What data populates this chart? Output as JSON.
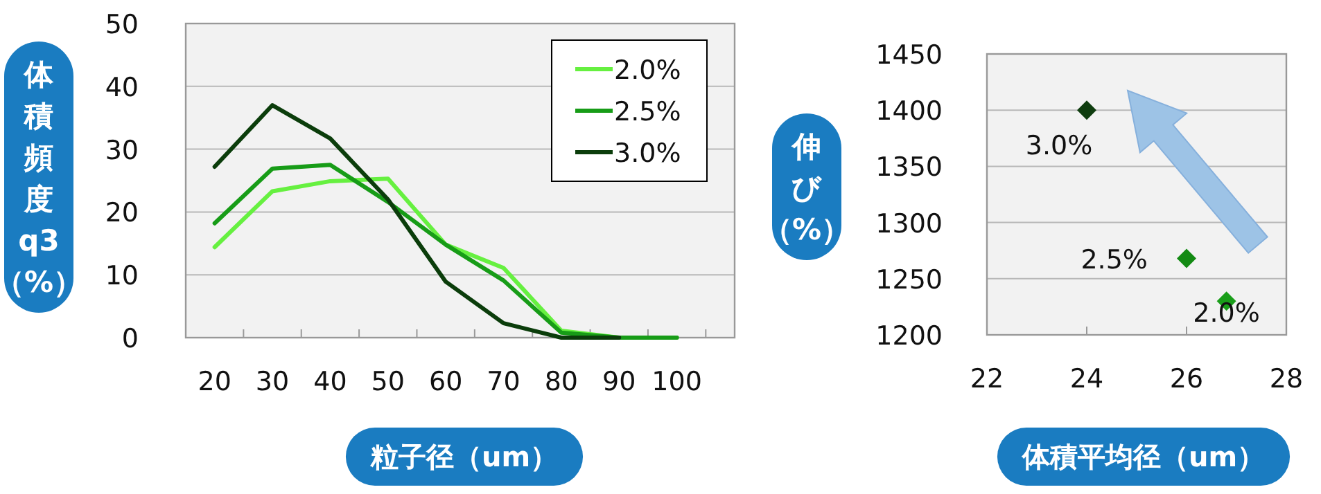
{
  "chart_data": [
    {
      "type": "line",
      "ylabel": "体積頻度q3（%）",
      "xlabel": "粒子径（um）",
      "categories": [
        "20",
        "30",
        "40",
        "50",
        "60",
        "70",
        "80",
        "90",
        "100"
      ],
      "series": [
        {
          "name": "2.0%",
          "color": "#66f040",
          "values": [
            14.4,
            23.3,
            24.9,
            25.3,
            14.8,
            11.1,
            1.1,
            0,
            0
          ]
        },
        {
          "name": "2.5%",
          "color": "#179c17",
          "values": [
            18.2,
            26.9,
            27.5,
            21.6,
            14.8,
            9.1,
            0.8,
            0,
            0
          ]
        },
        {
          "name": "3.0%",
          "color": "#0b3d0b",
          "values": [
            27.2,
            37.0,
            31.7,
            22.0,
            8.9,
            2.3,
            0,
            0,
            null
          ]
        }
      ],
      "ylim": [
        0,
        50
      ],
      "yticks": [
        0,
        10,
        20,
        30,
        40,
        50
      ],
      "grid": "y",
      "legend": "top right"
    },
    {
      "type": "scatter",
      "ylabel": "伸び（%）",
      "xlabel": "体積平均径（um）",
      "x": [
        24,
        26,
        26.8
      ],
      "values": [
        1400,
        1268,
        1230
      ],
      "colors": [
        "#0f3d0f",
        "#138a13",
        "#1a9e1a"
      ],
      "marker": "diamond",
      "xlim": [
        22,
        28
      ],
      "xticks": [
        22,
        24,
        26,
        28
      ],
      "ylim": [
        1200,
        1450
      ],
      "yticks": [
        1200,
        1250,
        1300,
        1350,
        1400,
        1450
      ],
      "grid": "y",
      "annotations": [
        {
          "text": "3.0%",
          "x": 24,
          "y": 1400
        },
        {
          "text": "2.5%",
          "x": 26,
          "y": 1268
        },
        {
          "text": "2.0%",
          "x": 26.8,
          "y": 1230
        }
      ]
    }
  ]
}
